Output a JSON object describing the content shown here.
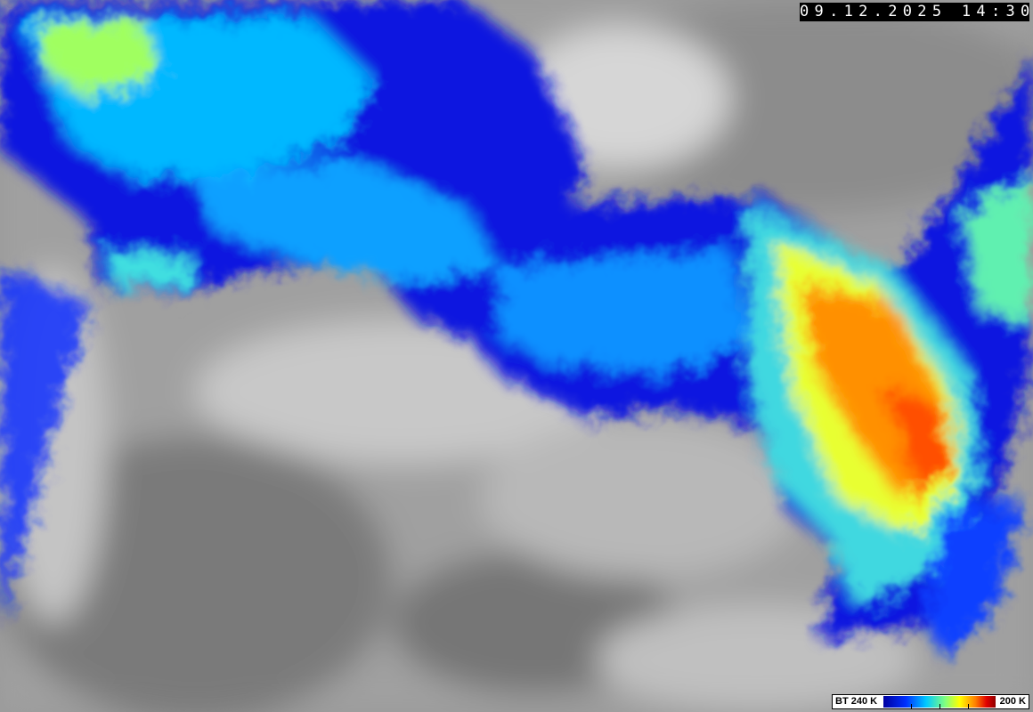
{
  "timestamp": "09.12.2025 14:30",
  "legend": {
    "low_label": "BT 240 K",
    "high_label": "200 K",
    "colors": [
      "#0000a0",
      "#0030ff",
      "#00c8ff",
      "#80ff80",
      "#ffff00",
      "#ff8000",
      "#e00000",
      "#900000"
    ]
  },
  "imagery": {
    "type": "infrared satellite image, colour-enhanced cold cloud tops",
    "background_colors": [
      "#6e6e6e",
      "#9a9a9a",
      "#d8d8d8"
    ]
  }
}
